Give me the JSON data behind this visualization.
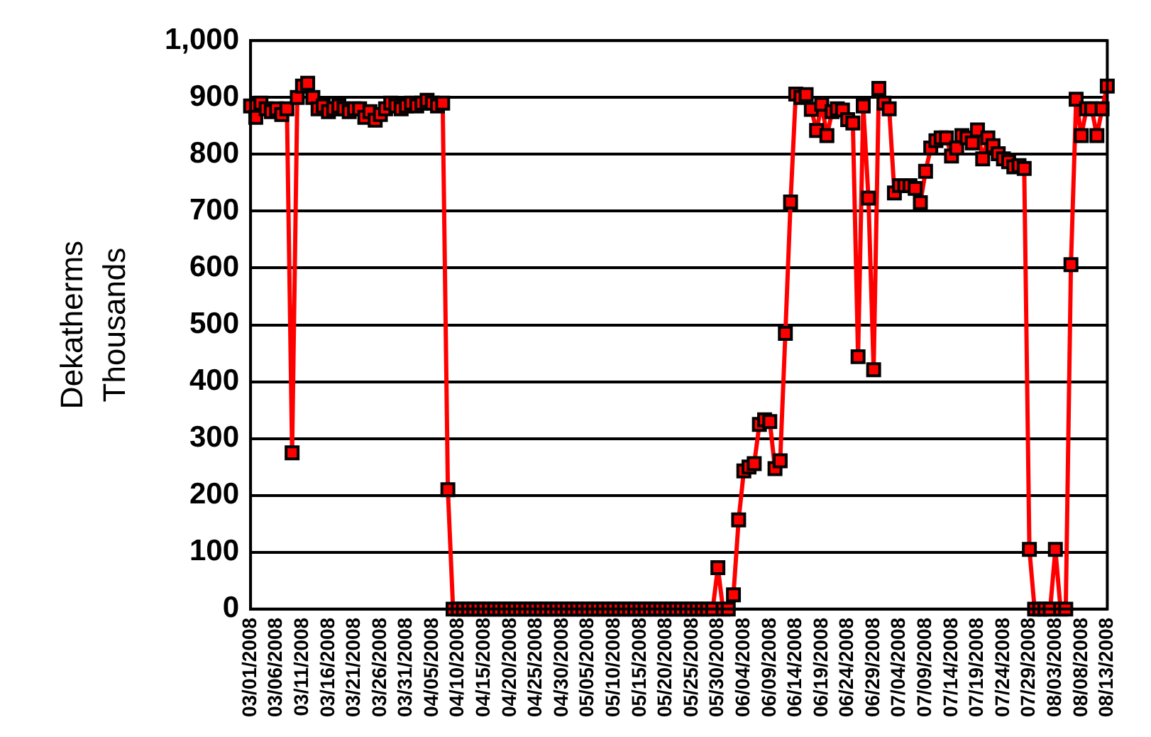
{
  "chart_data": {
    "type": "line",
    "ylabel": "Dekatherms",
    "annotations": [
      "Thousands"
    ],
    "categories": [
      "03/01/2008",
      null,
      null,
      null,
      null,
      "03/06/2008",
      null,
      null,
      null,
      null,
      "03/11/2008",
      null,
      null,
      null,
      null,
      "03/16/2008",
      null,
      null,
      null,
      null,
      "03/21/2008",
      null,
      null,
      null,
      null,
      "03/26/2008",
      null,
      null,
      null,
      null,
      "03/31/2008",
      null,
      null,
      null,
      null,
      "04/05/2008",
      null,
      null,
      null,
      null,
      "04/10/2008",
      null,
      null,
      null,
      null,
      "04/15/2008",
      null,
      null,
      null,
      null,
      "04/20/2008",
      null,
      null,
      null,
      null,
      "04/25/2008",
      null,
      null,
      null,
      null,
      "04/30/2008",
      null,
      null,
      null,
      null,
      "05/05/2008",
      null,
      null,
      null,
      null,
      "05/10/2008",
      null,
      null,
      null,
      null,
      "05/15/2008",
      null,
      null,
      null,
      null,
      "05/20/2008",
      null,
      null,
      null,
      null,
      "05/25/2008",
      null,
      null,
      null,
      null,
      "05/30/2008",
      null,
      null,
      null,
      null,
      "06/04/2008",
      null,
      null,
      null,
      null,
      "06/09/2008",
      null,
      null,
      null,
      null,
      "06/14/2008",
      null,
      null,
      null,
      null,
      "06/19/2008",
      null,
      null,
      null,
      null,
      "06/24/2008",
      null,
      null,
      null,
      null,
      "06/29/2008",
      null,
      null,
      null,
      null,
      "07/04/2008",
      null,
      null,
      null,
      null,
      "07/09/2008",
      null,
      null,
      null,
      null,
      "07/14/2008",
      null,
      null,
      null,
      null,
      "07/19/2008",
      null,
      null,
      null,
      null,
      "07/24/2008",
      null,
      null,
      null,
      null,
      "07/29/2008",
      null,
      null,
      null,
      null,
      "08/03/2008",
      null,
      null,
      null,
      null,
      "08/08/2008",
      null,
      null,
      null,
      null,
      "08/13/2008"
    ],
    "series": [
      {
        "color": "#ff0000",
        "values": [
          885,
          865,
          890,
          880,
          875,
          880,
          870,
          880,
          275,
          900,
          920,
          925,
          900,
          880,
          885,
          875,
          880,
          885,
          880,
          875,
          880,
          880,
          865,
          875,
          860,
          870,
          880,
          890,
          885,
          880,
          885,
          890,
          885,
          890,
          895,
          890,
          885,
          890,
          210,
          0,
          0,
          0,
          0,
          0,
          0,
          0,
          0,
          0,
          0,
          0,
          0,
          0,
          0,
          0,
          0,
          0,
          0,
          0,
          0,
          0,
          0,
          0,
          0,
          0,
          0,
          0,
          0,
          0,
          0,
          0,
          0,
          0,
          0,
          0,
          0,
          0,
          0,
          0,
          0,
          0,
          0,
          0,
          0,
          0,
          0,
          0,
          0,
          0,
          0,
          0,
          73,
          0,
          0,
          25,
          157,
          243,
          250,
          256,
          325,
          333,
          330,
          247,
          261,
          485,
          716,
          906,
          900,
          905,
          879,
          842,
          888,
          833,
          875,
          880,
          878,
          861,
          855,
          444,
          885,
          723,
          421,
          916,
          890,
          880,
          732,
          745,
          745,
          745,
          740,
          715,
          770,
          811,
          824,
          829,
          829,
          797,
          811,
          833,
          829,
          820,
          843,
          792,
          829,
          815,
          801,
          792,
          787,
          778,
          780,
          775,
          105,
          0,
          0,
          0,
          0,
          105,
          0,
          0,
          606,
          897,
          833,
          880,
          880,
          833,
          880,
          920
        ]
      }
    ],
    "ylim": [
      0,
      1000
    ],
    "yticks": [
      0,
      100,
      200,
      300,
      400,
      500,
      600,
      700,
      800,
      900,
      {
        "value": 1000,
        "label": "1,000"
      }
    ],
    "grid": "y",
    "legend": false,
    "marker": "square",
    "line_style": "solid"
  }
}
